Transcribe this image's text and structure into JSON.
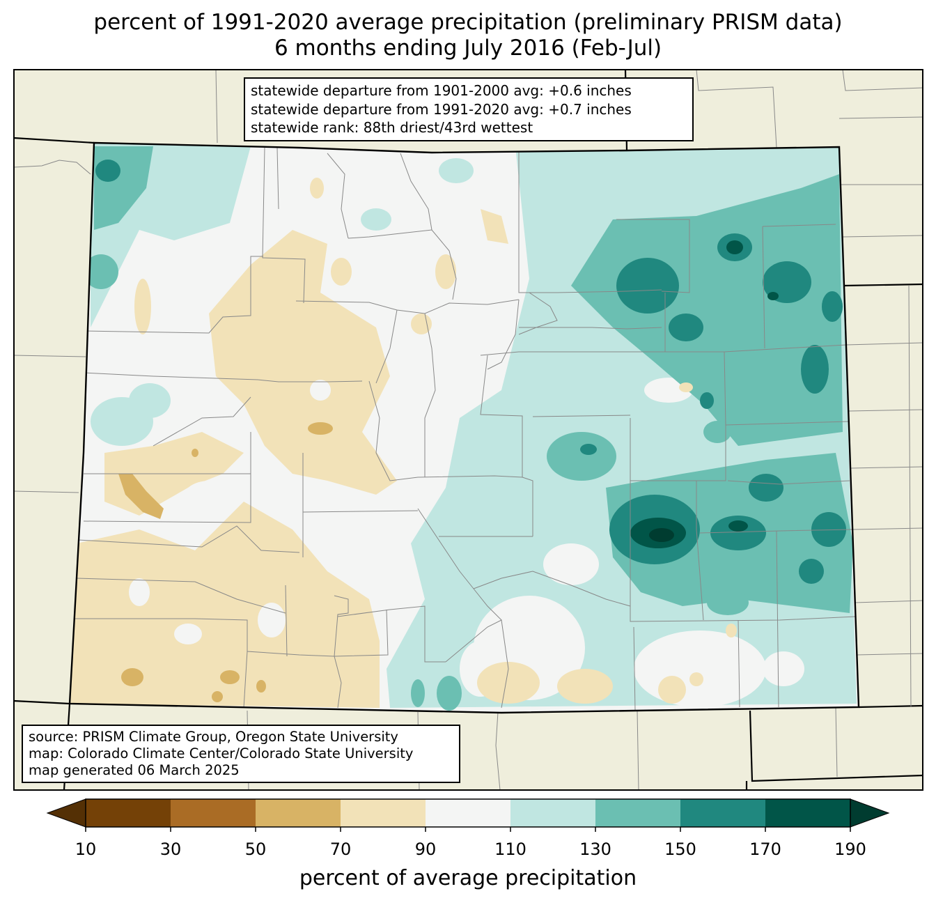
{
  "title": {
    "line1": "percent of 1991-2020 average precipitation (preliminary PRISM data)",
    "line2": "6 months ending July 2016 (Feb-Jul)"
  },
  "stats": {
    "line1": "statewide departure from 1901-2000 avg: +0.6 inches",
    "line2": "statewide departure from 1991-2020 avg: +0.7 inches",
    "line3": "statewide rank: 88th driest/43rd wettest"
  },
  "source": {
    "line1": "source: PRISM Climate Group, Oregon State University",
    "line2": "map: Colorado Climate Center/Colorado State University",
    "line3": "map generated 06 March 2025"
  },
  "colorbar": {
    "label": "percent of average precipitation",
    "ticks": [
      "10",
      "30",
      "50",
      "70",
      "90",
      "110",
      "130",
      "150",
      "170",
      "190"
    ],
    "under_color": "#543005",
    "over_color": "#003c30",
    "colors": [
      "#744107",
      "#aa6c25",
      "#d8b365",
      "#f2e2b8",
      "#f4f5f4",
      "#c0e6e1",
      "#6bbfb2",
      "#20887f",
      "#015548"
    ]
  },
  "palette": {
    "land_outside": "#efeedc",
    "state_border": "#000000",
    "county_line": "#888888"
  }
}
